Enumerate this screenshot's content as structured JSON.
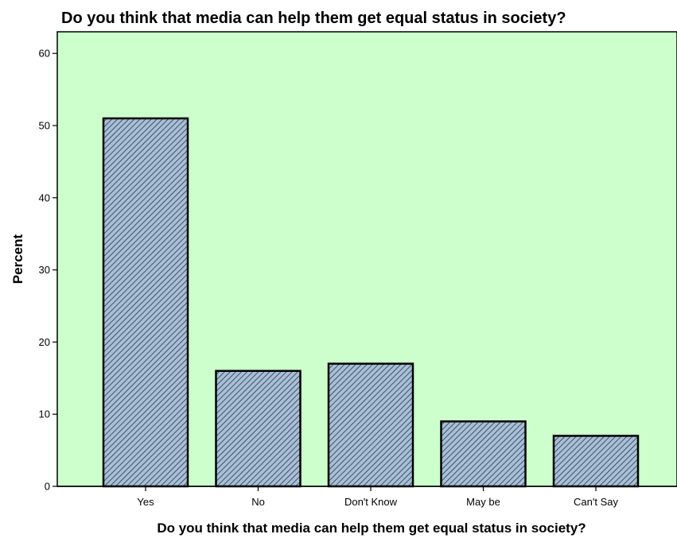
{
  "chart_data": {
    "type": "bar",
    "title": "Do you think that media can help them get equal status in society?",
    "xlabel": "Do you think that media can help them get equal status in society?",
    "ylabel": "Percent",
    "categories": [
      "Yes",
      "No",
      "Don't Know",
      "May be",
      "Can't Say"
    ],
    "values": [
      51,
      16,
      17,
      9,
      7
    ],
    "ylim": [
      0,
      63
    ],
    "yticks": [
      0,
      10,
      20,
      30,
      40,
      50,
      60
    ],
    "grid": false,
    "legend": "none",
    "colors": {
      "plot_background": "#ccffcc",
      "bar_fill": "#a8bfd6",
      "bar_hatch": "#23374a",
      "bar_outline": "#000000",
      "axis": "#000000"
    }
  }
}
